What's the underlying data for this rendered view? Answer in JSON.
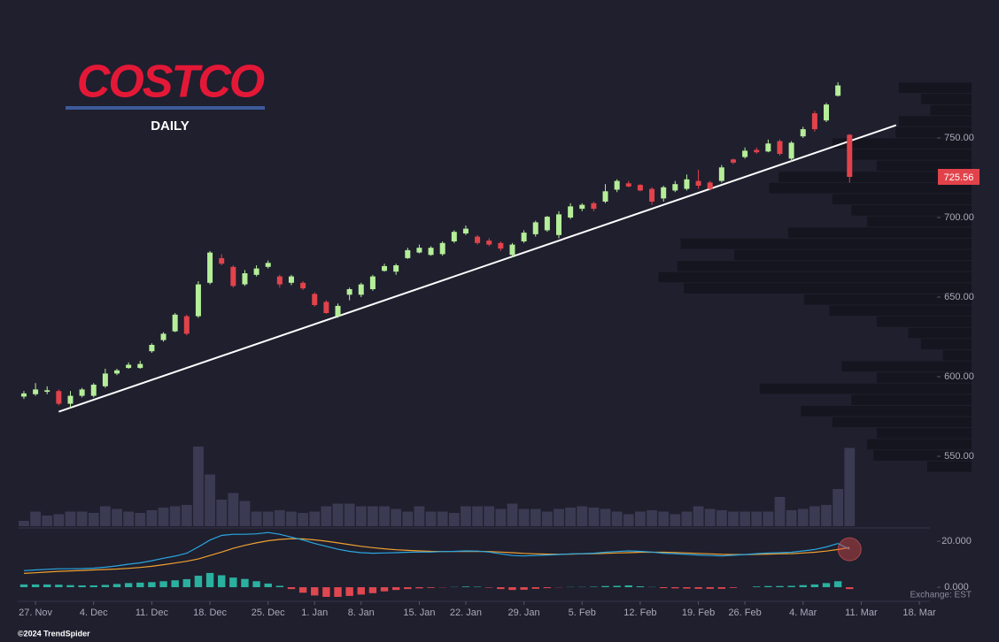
{
  "chart_data": {
    "type": "candlestick",
    "logo": "COSTCO",
    "subtitle": "DAILY",
    "exchange": "Exchange: EST",
    "credit": "©2024 TrendSpider",
    "up_color": "#b5ee98",
    "down_color": "#e2434b",
    "x": [
      0,
      1,
      2,
      3,
      4,
      5,
      6,
      7,
      8,
      9,
      10,
      11,
      12,
      13,
      14,
      15,
      16,
      17,
      18,
      19,
      20,
      21,
      22,
      23,
      24,
      25,
      26,
      27,
      28,
      29,
      30,
      31,
      32,
      33,
      34,
      35,
      36,
      37,
      38,
      39,
      40,
      41,
      42,
      43,
      44,
      45,
      46,
      47,
      48,
      49,
      50,
      51,
      52,
      53,
      54,
      55,
      56,
      57,
      58,
      59,
      60,
      61,
      62,
      63,
      64,
      65,
      66,
      67,
      68,
      69,
      70,
      71
    ],
    "open": [
      587.5,
      589,
      590.5,
      591,
      583,
      588,
      588,
      594,
      602,
      605.5,
      605.5,
      616,
      623,
      628.5,
      638,
      638,
      659,
      674.5,
      669,
      658,
      664,
      669,
      663,
      659,
      659,
      652,
      647,
      638,
      651.5,
      651.5,
      655,
      666.5,
      666,
      674.5,
      678,
      676.5,
      677,
      685,
      690,
      688,
      685.5,
      684,
      676.5,
      685,
      689.5,
      692,
      689,
      700,
      705.5,
      709,
      710,
      717.5,
      721.5,
      720.5,
      718,
      712,
      717,
      718,
      723,
      722,
      723,
      736.5,
      738,
      742.5,
      741.5,
      748,
      737,
      751,
      765.5,
      761,
      776.5,
      752
    ],
    "high": [
      591,
      596,
      594,
      592,
      591,
      593,
      596,
      605,
      605,
      609,
      610,
      621,
      628,
      640,
      639,
      660,
      679,
      677,
      670,
      667,
      670,
      673,
      664,
      664,
      660,
      653,
      648,
      646,
      656,
      659,
      664,
      671,
      671,
      681,
      683,
      682,
      685,
      692,
      695,
      689,
      687,
      685,
      684,
      692,
      698,
      701,
      704,
      709,
      709,
      710,
      721,
      724,
      723,
      721,
      719,
      720,
      723,
      727,
      730,
      723,
      733,
      737,
      744,
      744,
      749,
      749,
      748,
      757,
      767,
      772,
      785,
      752.5
    ],
    "low": [
      586,
      588,
      589,
      582,
      580,
      587,
      587,
      593,
      601,
      605,
      605,
      615,
      622,
      628,
      626,
      637,
      658,
      670,
      656,
      657,
      663,
      668,
      656,
      657.5,
      654.5,
      644,
      639.5,
      637,
      648,
      650,
      654,
      666,
      664,
      674,
      677.5,
      676,
      676,
      684,
      689,
      683,
      682,
      679,
      675,
      684,
      688,
      691,
      687,
      699,
      704,
      704,
      709,
      716,
      719,
      716.5,
      708,
      710,
      716,
      717,
      718,
      717,
      722,
      733.5,
      737,
      740,
      741,
      739,
      735,
      750,
      754,
      760,
      776,
      722
    ],
    "close": [
      589.5,
      592,
      591.5,
      583,
      588,
      592,
      595,
      602,
      604,
      607.5,
      608,
      620,
      627,
      639,
      627,
      658,
      678,
      671,
      657,
      665,
      668,
      671.5,
      658,
      663,
      655.5,
      645,
      640,
      644.5,
      655,
      658,
      663,
      669.5,
      670,
      679.5,
      681,
      681,
      684,
      691,
      693,
      684,
      683,
      680.5,
      683,
      690.5,
      697,
      700.5,
      702,
      707,
      708,
      705.5,
      716.5,
      723,
      719.5,
      717,
      710,
      719,
      721,
      724,
      720,
      718,
      731.5,
      734.5,
      742,
      741,
      746.5,
      740,
      747,
      755.5,
      755.5,
      771,
      783,
      725.56
    ],
    "xlim": [
      -0.5,
      78
    ],
    "xticks": [
      {
        "value": 1,
        "label": "27. Nov"
      },
      {
        "value": 6,
        "label": "4. Dec"
      },
      {
        "value": 11,
        "label": "11. Dec"
      },
      {
        "value": 16,
        "label": "18. Dec"
      },
      {
        "value": 21,
        "label": "25. Dec"
      },
      {
        "value": 25,
        "label": "1. Jan"
      },
      {
        "value": 29,
        "label": "8. Jan"
      },
      {
        "value": 34,
        "label": "15. Jan"
      },
      {
        "value": 38,
        "label": "22. Jan"
      },
      {
        "value": 43,
        "label": "29. Jan"
      },
      {
        "value": 48,
        "label": "5. Feb"
      },
      {
        "value": 53,
        "label": "12. Feb"
      },
      {
        "value": 58,
        "label": "19. Feb"
      },
      {
        "value": 62,
        "label": "26. Feb"
      },
      {
        "value": 67,
        "label": "4. Mar"
      },
      {
        "value": 72,
        "label": "11. Mar"
      },
      {
        "value": 77,
        "label": "18. Mar"
      }
    ],
    "ylim": [
      506,
      787
    ],
    "yticks": [
      {
        "value": 550,
        "label": "550.00"
      },
      {
        "value": 600,
        "label": "600.00"
      },
      {
        "value": 650,
        "label": "650.00"
      },
      {
        "value": 700,
        "label": "700.00"
      },
      {
        "value": 750,
        "label": "750.00"
      }
    ],
    "trendline": {
      "x": [
        3,
        75
      ],
      "values": [
        578,
        758
      ],
      "color": "#ffffff"
    },
    "volume": {
      "values": [
        0.4,
        1.1,
        0.8,
        0.9,
        1.1,
        1.1,
        1.0,
        1.5,
        1.3,
        1.1,
        1.0,
        1.2,
        1.4,
        1.5,
        1.6,
        6.0,
        3.9,
        2.0,
        2.5,
        1.9,
        1.1,
        1.1,
        1.2,
        1.1,
        1.0,
        1.1,
        1.5,
        1.7,
        1.7,
        1.5,
        1.5,
        1.5,
        1.3,
        1.1,
        1.5,
        1.1,
        1.1,
        1.0,
        1.5,
        1.5,
        1.5,
        1.3,
        1.7,
        1.3,
        1.3,
        1.1,
        1.3,
        1.4,
        1.5,
        1.4,
        1.3,
        1.1,
        0.9,
        1.1,
        1.2,
        1.1,
        0.9,
        1.1,
        1.5,
        1.3,
        1.2,
        1.1,
        1.1,
        1.1,
        1.1,
        2.2,
        1.2,
        1.3,
        1.5,
        1.6,
        2.8,
        5.9
      ],
      "ylim": [
        0,
        7
      ],
      "color": "#3a3a52"
    },
    "volume_profile": {
      "bins": [
        785,
        778,
        771,
        764,
        757,
        750,
        743,
        736,
        729,
        722,
        715,
        708,
        701,
        694,
        687,
        680,
        673,
        666,
        659,
        652,
        645,
        638,
        631,
        624,
        617,
        610,
        603,
        596,
        589,
        582,
        575,
        568,
        561,
        554,
        547,
        540
      ],
      "values": [
        23,
        16,
        13,
        23,
        24,
        44,
        38,
        30,
        61,
        64,
        44,
        38,
        33,
        58,
        92,
        75,
        93,
        99,
        91,
        53,
        45,
        30,
        20,
        16,
        9,
        41,
        30,
        67,
        38,
        54,
        44,
        30,
        33,
        31,
        14
      ],
      "xlim": [
        0,
        100
      ],
      "color": "#15151f"
    },
    "macd": {
      "ylim": [
        -4.6,
        25.4
      ],
      "yticks": [
        {
          "value": 0,
          "label": "0.000"
        },
        {
          "value": 20,
          "label": "20.000"
        }
      ],
      "line": {
        "color": "#2aa7e0",
        "values": [
          7.2,
          7.5,
          7.8,
          8.0,
          8.0,
          8.1,
          8.3,
          8.7,
          9.3,
          10.0,
          10.6,
          11.5,
          12.6,
          13.5,
          14.8,
          17.5,
          20.5,
          22.5,
          23.0,
          23.0,
          23.2,
          23.8,
          23.0,
          21.8,
          20.5,
          19.0,
          17.8,
          16.5,
          15.6,
          15.0,
          14.8,
          14.9,
          15.0,
          15.2,
          15.3,
          15.3,
          15.5,
          15.6,
          15.8,
          15.7,
          15.3,
          14.5,
          13.8,
          13.6,
          13.8,
          14.0,
          14.2,
          14.5,
          14.6,
          14.8,
          15.2,
          15.5,
          15.8,
          15.6,
          15.3,
          14.8,
          14.6,
          14.3,
          14.0,
          13.8,
          13.6,
          13.9,
          14.2,
          14.6,
          14.9,
          15.0,
          15.2,
          15.8,
          16.4,
          17.5,
          19.0,
          16.5
        ]
      },
      "signal": {
        "color": "#f0a030",
        "values": [
          6.0,
          6.3,
          6.6,
          6.9,
          7.1,
          7.3,
          7.5,
          7.7,
          7.9,
          8.2,
          8.6,
          9.1,
          9.8,
          10.5,
          11.3,
          12.3,
          13.8,
          15.3,
          16.9,
          18.2,
          19.3,
          20.2,
          20.8,
          21.1,
          21.0,
          20.6,
          20.0,
          19.3,
          18.5,
          17.8,
          17.2,
          16.7,
          16.3,
          16.0,
          15.8,
          15.6,
          15.5,
          15.5,
          15.5,
          15.6,
          15.5,
          15.3,
          15.0,
          14.7,
          14.5,
          14.4,
          14.3,
          14.4,
          14.5,
          14.6,
          14.7,
          14.9,
          15.0,
          15.2,
          15.2,
          15.2,
          15.1,
          14.9,
          14.7,
          14.5,
          14.3,
          14.2,
          14.2,
          14.3,
          14.4,
          14.5,
          14.6,
          14.9,
          15.2,
          15.7,
          16.4,
          17.3
        ]
      },
      "histogram": {
        "up_color": "#2bb09f",
        "down_color": "#e0474f",
        "values": [
          1.2,
          1.2,
          1.2,
          1.1,
          0.9,
          0.8,
          0.8,
          1.0,
          1.4,
          1.8,
          2.0,
          2.2,
          2.6,
          3.0,
          3.5,
          5.0,
          6.2,
          5.2,
          4.2,
          3.6,
          2.6,
          1.6,
          0.6,
          -0.8,
          -2.4,
          -3.6,
          -4.2,
          -4.2,
          -3.8,
          -3.2,
          -2.6,
          -1.8,
          -1.2,
          -0.8,
          -0.5,
          -0.3,
          -0.1,
          0.1,
          0.3,
          0.2,
          -0.2,
          -0.8,
          -1.2,
          -1.1,
          -0.7,
          -0.4,
          -0.1,
          0.1,
          0.1,
          0.2,
          0.5,
          0.6,
          0.8,
          0.4,
          0.1,
          -0.4,
          -0.5,
          -0.6,
          -0.7,
          -0.7,
          -0.7,
          -0.3,
          0.0,
          0.3,
          0.5,
          0.5,
          0.6,
          0.9,
          1.2,
          1.8,
          2.6,
          -0.8
        ]
      }
    }
  }
}
